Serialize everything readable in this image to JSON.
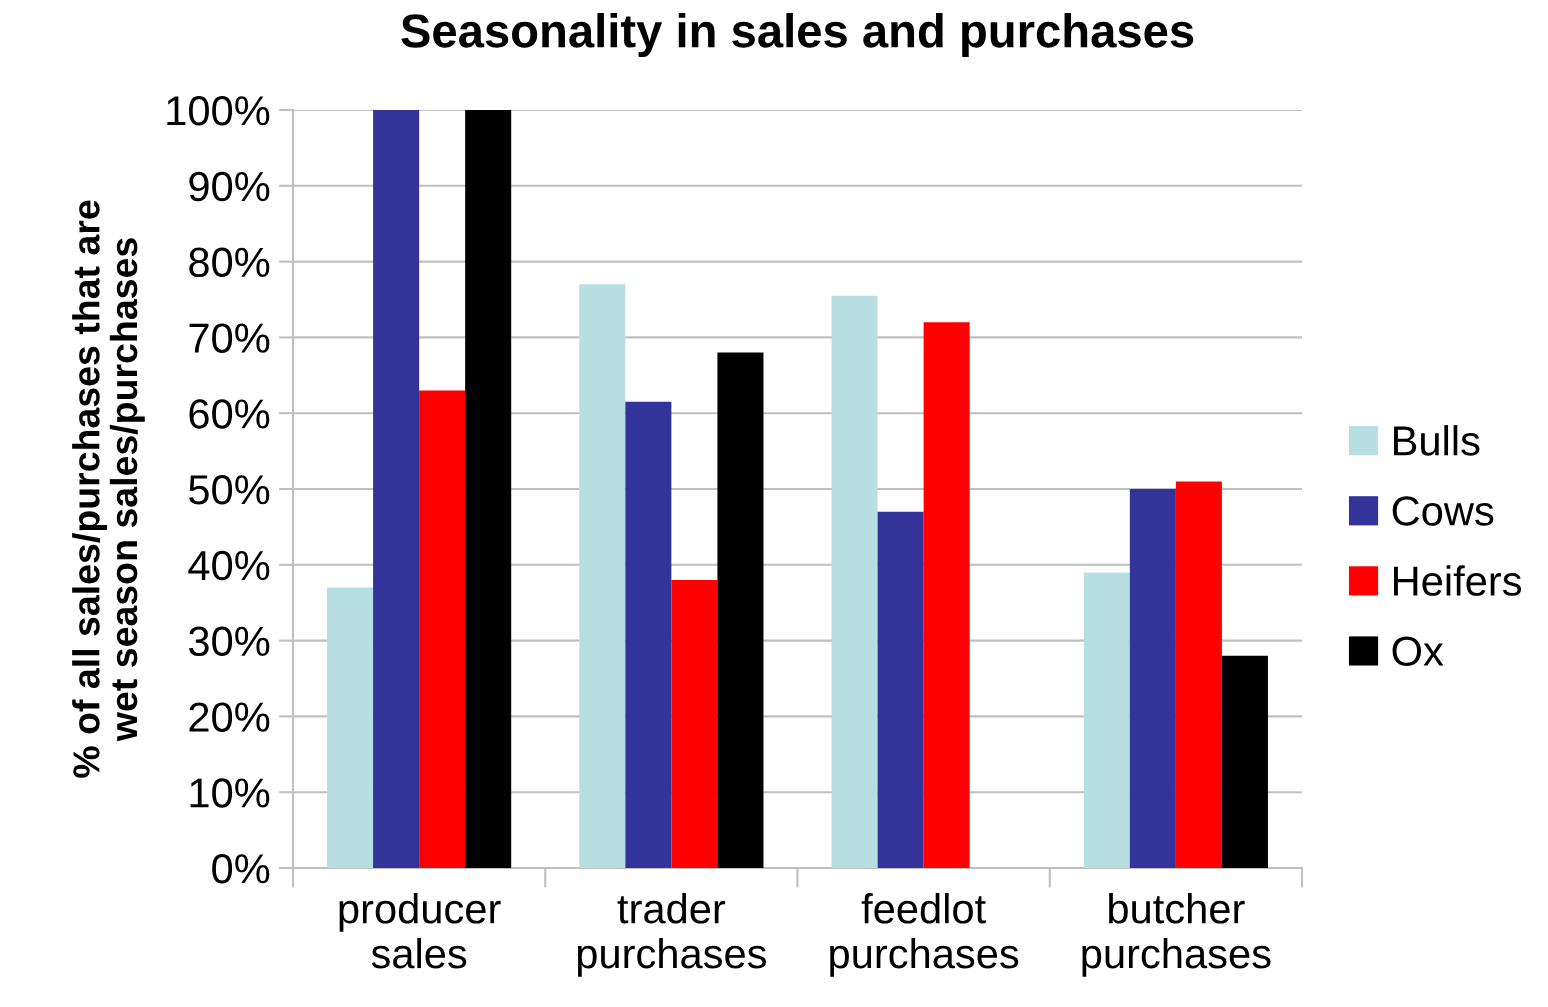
{
  "chart_data": {
    "type": "bar",
    "title": "Seasonality in sales and purchases",
    "ylabel": "% of all sales/purchases that are\nwet season sales/purchases",
    "categories": [
      "producer\nsales",
      "trader\npurchases",
      "feedlot\npurchases",
      "butcher\npurchases"
    ],
    "series": [
      {
        "name": "Bulls",
        "color": "#b7dfe2",
        "values": [
          37,
          77,
          75.5,
          39
        ]
      },
      {
        "name": "Cows",
        "color": "#333399",
        "values": [
          100,
          61.5,
          47,
          50
        ]
      },
      {
        "name": "Heifers",
        "color": "#ff0000",
        "values": [
          63,
          38,
          72,
          51
        ]
      },
      {
        "name": "Ox",
        "color": "#000000",
        "values": [
          100,
          68,
          null,
          28
        ]
      }
    ],
    "ylim": [
      0,
      100
    ],
    "yticks": [
      {
        "value": 0,
        "label": "0%"
      },
      {
        "value": 10,
        "label": "10%"
      },
      {
        "value": 20,
        "label": "20%"
      },
      {
        "value": 30,
        "label": "30%"
      },
      {
        "value": 40,
        "label": "40%"
      },
      {
        "value": 50,
        "label": "50%"
      },
      {
        "value": 60,
        "label": "60%"
      },
      {
        "value": 70,
        "label": "70%"
      },
      {
        "value": 80,
        "label": "80%"
      },
      {
        "value": 90,
        "label": "90%"
      },
      {
        "value": 100,
        "label": "100%"
      }
    ],
    "grid": "y",
    "legend": "right"
  }
}
